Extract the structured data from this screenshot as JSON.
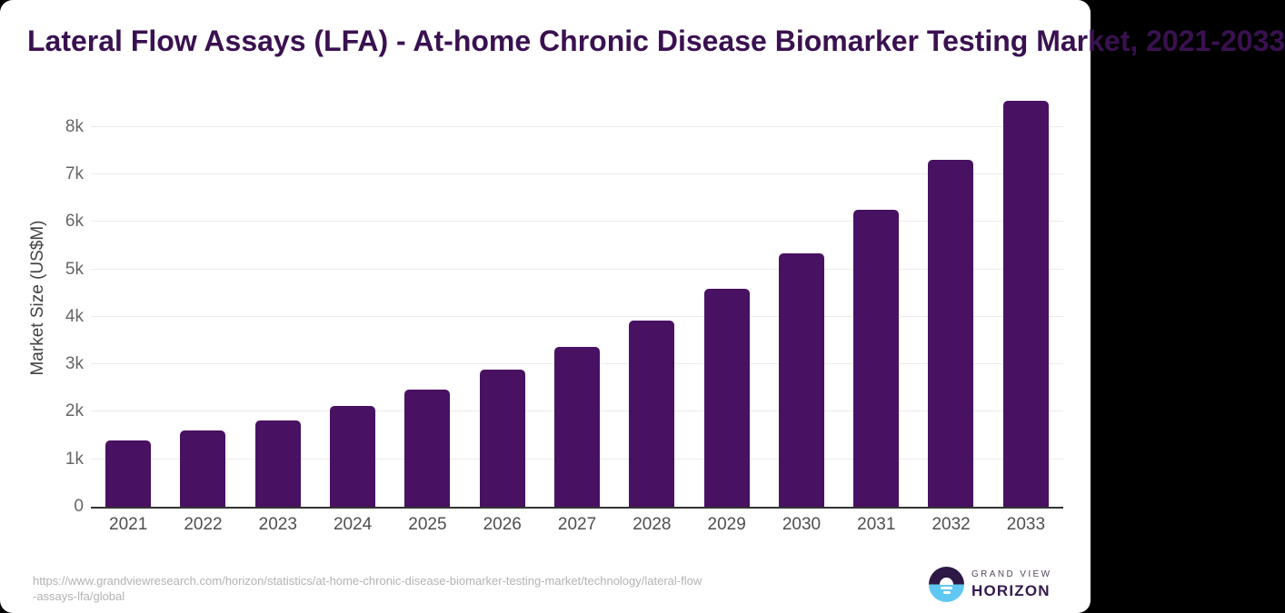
{
  "chart_data": {
    "type": "bar",
    "title": "Lateral Flow Assays (LFA) - At-home Chronic Disease Biomarker Testing Market, 2021-2033",
    "ylabel": "Market Size (US$M)",
    "xlabel": "",
    "categories": [
      "2021",
      "2022",
      "2023",
      "2024",
      "2025",
      "2026",
      "2027",
      "2028",
      "2029",
      "2030",
      "2031",
      "2032",
      "2033"
    ],
    "values": [
      1400,
      1600,
      1820,
      2120,
      2460,
      2890,
      3370,
      3930,
      4600,
      5340,
      6250,
      7300,
      8550
    ],
    "ylim": [
      0,
      8800
    ],
    "yticks": [
      0,
      1000,
      2000,
      3000,
      4000,
      5000,
      6000,
      7000,
      8000
    ],
    "ytick_labels": [
      "0",
      "1k",
      "2k",
      "3k",
      "4k",
      "5k",
      "6k",
      "7k",
      "8k"
    ],
    "grid": true,
    "legend": false,
    "bar_color": "#481162"
  },
  "footer": {
    "source_url_line1": "https://www.grandviewresearch.com/horizon/statistics/at-home-chronic-disease-biomarker-testing-market/technology/lateral-flow",
    "source_url_line2": "-assays-lfa/global",
    "logo_top": "GRAND VIEW",
    "logo_bottom": "HORIZON"
  },
  "colors": {
    "title": "#3a1150",
    "axis_line": "#333333",
    "gridline": "#ebebeb",
    "tick_label": "#666666",
    "x_label": "#4f4f4f",
    "y_axis_title": "#424242",
    "url_text": "#b3b3b3",
    "logo_purple": "#2d1846",
    "logo_blue": "#5ec8f2",
    "logo_text_top": "#534660",
    "logo_text_bottom": "#35194f"
  }
}
